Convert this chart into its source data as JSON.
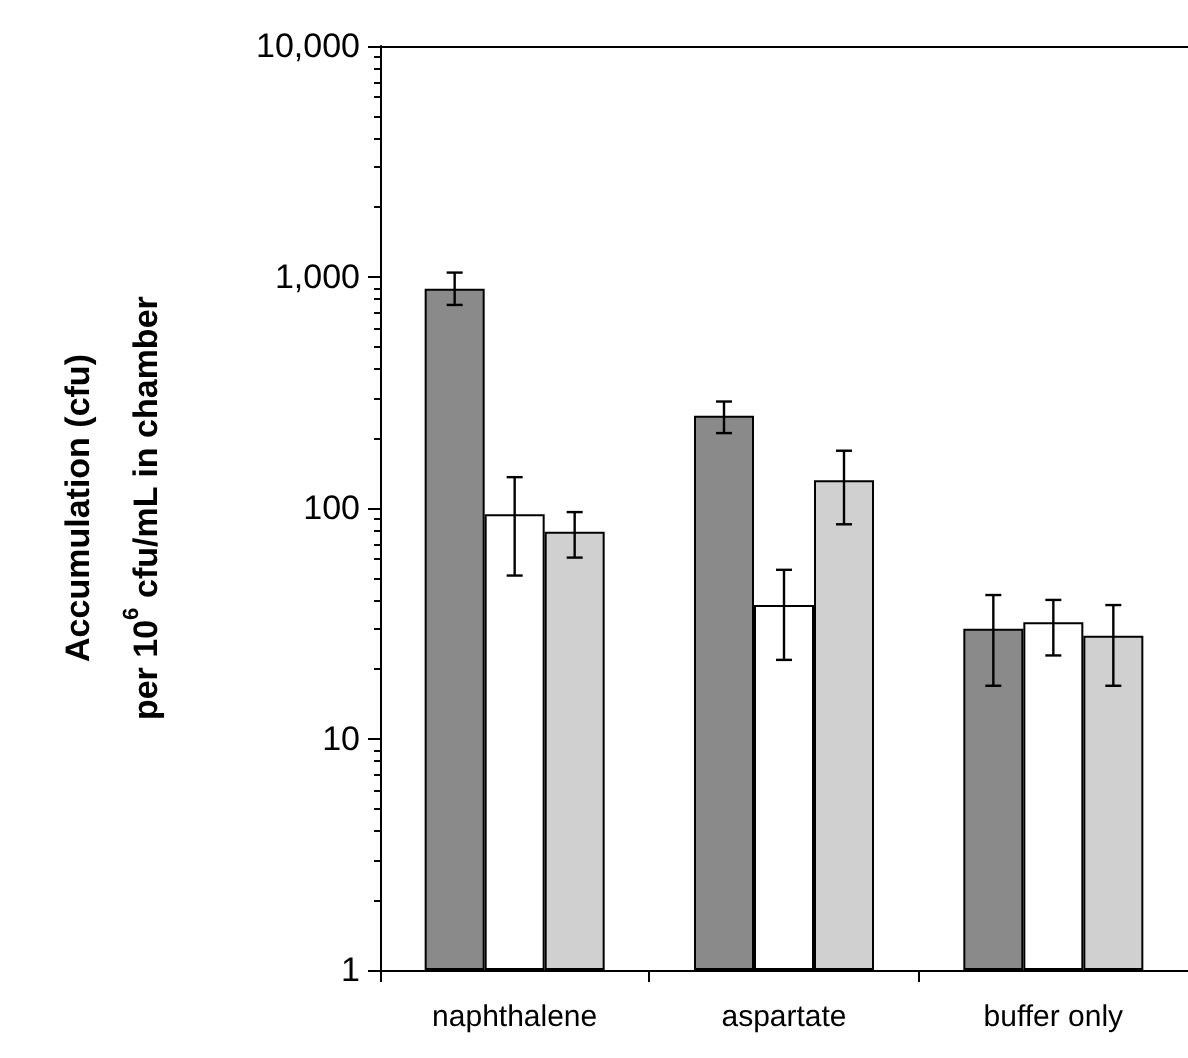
{
  "chart_data": {
    "type": "bar",
    "ylabel": "Accumulation (cfu)\nper 10$^{6}$ cfu/mL in chamber",
    "categories": [
      "naphthalene",
      "aspartate",
      "buffer only"
    ],
    "series": [
      {
        "color": "#8a8a8a",
        "values": [
          890,
          251,
          30
        ],
        "errors": [
          [
            757,
            1045
          ],
          [
            211,
            289
          ],
          [
            17,
            42
          ]
        ]
      },
      {
        "color": "#ffffff",
        "values": [
          94,
          38,
          32
        ],
        "errors": [
          [
            51,
            136
          ],
          [
            22,
            54
          ],
          [
            23,
            40
          ]
        ]
      },
      {
        "color": "#d0d0d0",
        "values": [
          79,
          132,
          28
        ],
        "errors": [
          [
            61,
            96
          ],
          [
            85,
            177
          ],
          [
            17,
            38
          ]
        ]
      }
    ],
    "log": true,
    "ylim": [
      1,
      10000
    ],
    "yticks": [
      1,
      10,
      100,
      {
        "value": 1000,
        "label": "1,000"
      },
      {
        "value": 10000,
        "label": "10,000"
      }
    ],
    "grid": false
  }
}
